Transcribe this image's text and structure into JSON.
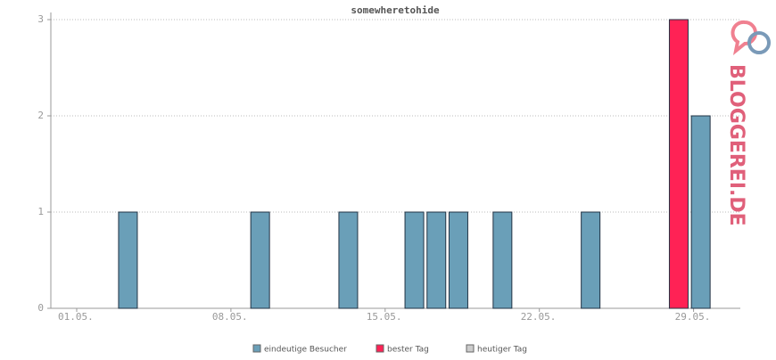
{
  "chart_data": {
    "type": "bar",
    "title": "somewheretohide",
    "categories": [
      "01.05.",
      null,
      null,
      null,
      null,
      null,
      null,
      "08.05.",
      null,
      null,
      null,
      null,
      null,
      null,
      "15.05.",
      null,
      null,
      null,
      null,
      null,
      null,
      "22.05.",
      null,
      null,
      null,
      null,
      null,
      null,
      "29.05.",
      null,
      null
    ],
    "series": [
      {
        "name": "eindeutige Besucher",
        "color": "#6a9fb8",
        "values": [
          0,
          0,
          0,
          1,
          0,
          0,
          0,
          0,
          0,
          1,
          0,
          0,
          0,
          1,
          0,
          0,
          1,
          1,
          1,
          0,
          1,
          0,
          0,
          0,
          1,
          0,
          0,
          0,
          null,
          2,
          0
        ]
      },
      {
        "name": "bester Tag",
        "color": "#ff2255",
        "values": [
          null,
          null,
          null,
          null,
          null,
          null,
          null,
          null,
          null,
          null,
          null,
          null,
          null,
          null,
          null,
          null,
          null,
          null,
          null,
          null,
          null,
          null,
          null,
          null,
          null,
          null,
          null,
          null,
          3,
          null,
          null
        ]
      },
      {
        "name": "heutiger Tag",
        "color": "#cccccc",
        "values": [
          null,
          null,
          null,
          null,
          null,
          null,
          null,
          null,
          null,
          null,
          null,
          null,
          null,
          null,
          null,
          null,
          null,
          null,
          null,
          null,
          null,
          null,
          null,
          null,
          null,
          null,
          null,
          null,
          null,
          null,
          null
        ]
      }
    ],
    "ylim": [
      0,
      3
    ],
    "yticks": [
      0,
      1,
      2,
      3
    ],
    "grid": true,
    "logo": "BLOGGEREI.DE"
  }
}
